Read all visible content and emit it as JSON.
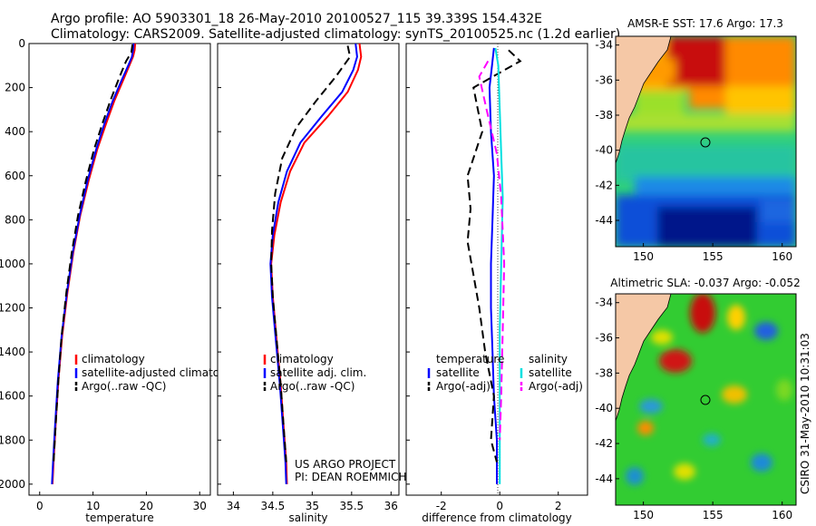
{
  "header": {
    "line1": "Argo profile: AO 5903301_18 26-May-2010 20100527_115 39.339S 154.432E",
    "line2": "Climatology: CARS2009. Satellite-adjusted climatology: synTS_20100525.nc (1.2d earlier)"
  },
  "chart_data": [
    {
      "type": "line",
      "xlabel": "temperature",
      "ylabel": "",
      "xlim": [
        -2,
        32
      ],
      "ylim": [
        2050,
        0
      ],
      "xticks": [
        "0",
        "10",
        "20",
        "30"
      ],
      "yticks": [
        "0",
        "200",
        "400",
        "600",
        "800",
        "1000",
        "1200",
        "1400",
        "1600",
        "1800",
        "2000"
      ],
      "series": [
        {
          "name": "climatology",
          "color": "#ff0000",
          "dash": "",
          "x": [
            17.9,
            17.8,
            17.5,
            16.8,
            15.6,
            14.0,
            12.5,
            10.8,
            9.2,
            7.6,
            6.3,
            5.2,
            4.2,
            3.5,
            3.0,
            2.6,
            2.4
          ],
          "y": [
            0,
            30,
            60,
            100,
            170,
            260,
            360,
            480,
            620,
            780,
            950,
            1130,
            1330,
            1530,
            1730,
            1900,
            2000
          ]
        },
        {
          "name": "satellite-adjusted climatology",
          "color": "#0000ff",
          "dash": "",
          "x": [
            17.6,
            17.5,
            17.3,
            16.6,
            15.3,
            13.7,
            12.2,
            10.6,
            9.0,
            7.5,
            6.2,
            5.1,
            4.1,
            3.4,
            2.9,
            2.5,
            2.3
          ],
          "y": [
            0,
            30,
            60,
            100,
            170,
            260,
            360,
            480,
            620,
            780,
            950,
            1130,
            1330,
            1530,
            1730,
            1900,
            2000
          ]
        },
        {
          "name": "Argo(..raw -QC)",
          "color": "#000000",
          "dash": "9,5",
          "x": [
            17.4,
            17.2,
            16.2,
            15.0,
            13.4,
            11.8,
            10.2,
            8.7,
            7.2,
            6.0,
            5.0,
            4.1,
            3.5,
            3.0,
            2.6
          ],
          "y": [
            5,
            40,
            80,
            150,
            250,
            360,
            480,
            620,
            780,
            950,
            1130,
            1330,
            1530,
            1730,
            1900
          ]
        }
      ],
      "legend": [
        "climatology",
        "satellite-adjusted climatology",
        "Argo(..raw -QC)"
      ],
      "legend_position": "bottom-right"
    },
    {
      "type": "line",
      "xlabel": "salinity",
      "ylabel": "",
      "xlim": [
        33.8,
        36.1
      ],
      "ylim": [
        2050,
        0
      ],
      "xticks": [
        "34",
        "34.5",
        "35",
        "35.5",
        "36"
      ],
      "series": [
        {
          "name": "climatology",
          "color": "#ff0000",
          "dash": "",
          "x": [
            35.6,
            35.62,
            35.58,
            35.45,
            35.2,
            34.9,
            34.72,
            34.6,
            34.52,
            34.48,
            34.5,
            34.55,
            34.6,
            34.64,
            34.67,
            34.68
          ],
          "y": [
            0,
            60,
            120,
            220,
            330,
            450,
            580,
            720,
            870,
            1000,
            1150,
            1350,
            1550,
            1750,
            1900,
            2000
          ]
        },
        {
          "name": "satellite adj. clim.",
          "color": "#0000ff",
          "dash": "",
          "x": [
            35.55,
            35.57,
            35.52,
            35.38,
            35.12,
            34.85,
            34.68,
            34.57,
            34.5,
            34.47,
            34.49,
            34.54,
            34.59,
            34.63,
            34.66,
            34.67
          ],
          "y": [
            0,
            60,
            120,
            220,
            330,
            450,
            580,
            720,
            870,
            1000,
            1150,
            1350,
            1550,
            1750,
            1900,
            2000
          ]
        },
        {
          "name": "Argo(..raw -QC)",
          "color": "#000000",
          "dash": "9,5",
          "x": [
            35.45,
            35.48,
            35.3,
            35.05,
            34.8,
            34.62,
            34.53,
            34.49,
            34.48,
            34.5,
            34.55,
            34.6,
            34.64,
            34.67
          ],
          "y": [
            10,
            60,
            150,
            260,
            380,
            520,
            680,
            850,
            1000,
            1150,
            1350,
            1550,
            1750,
            1900
          ]
        }
      ],
      "legend": [
        "climatology",
        "satellite adj. clim.",
        "Argo(..raw -QC)"
      ],
      "legend_position": "bottom-right",
      "annotation": [
        "US ARGO PROJECT",
        "PI: DEAN ROEMMICH"
      ]
    },
    {
      "type": "line",
      "xlabel": "difference from climatology",
      "ylabel": "",
      "xlim": [
        -3.2,
        3.0
      ],
      "ylim": [
        2050,
        0
      ],
      "xticks": [
        "-2",
        "0",
        "2"
      ],
      "series": [
        {
          "name": "temperature satellite",
          "color": "#0000ff",
          "dash": "",
          "x": [
            -0.2,
            -0.25,
            -0.35,
            -0.3,
            -0.2,
            -0.25,
            -0.3,
            -0.3,
            -0.25,
            -0.2,
            -0.15,
            -0.1,
            -0.1,
            -0.1
          ],
          "y": [
            20,
            80,
            200,
            400,
            600,
            800,
            1000,
            1200,
            1400,
            1600,
            1700,
            1800,
            1900,
            2000
          ]
        },
        {
          "name": "temperature Argo(-adj)",
          "color": "#000000",
          "dash": "9,5",
          "x": [
            0.3,
            0.7,
            -0.9,
            -0.6,
            -1.1,
            -1.0,
            -1.1,
            -0.9,
            -0.7,
            -0.5,
            -0.2,
            -0.3,
            -0.1
          ],
          "y": [
            30,
            80,
            200,
            400,
            600,
            750,
            900,
            1050,
            1200,
            1400,
            1600,
            1800,
            1900
          ]
        },
        {
          "name": "salinity satellite",
          "color": "#00e0e0",
          "dash": "",
          "x": [
            -0.15,
            -0.05,
            0.0,
            0.05,
            0.1,
            0.05,
            0.0,
            0.0,
            0.0,
            0.0
          ],
          "y": [
            20,
            100,
            300,
            500,
            700,
            1000,
            1300,
            1600,
            1800,
            2000
          ]
        },
        {
          "name": "salinity Argo(-adj)",
          "color": "#ff00ff",
          "dash": "9,5",
          "x": [
            -0.4,
            -0.7,
            -0.45,
            -0.1,
            0.05,
            0.15,
            0.1,
            0.05,
            0.0
          ],
          "y": [
            80,
            150,
            300,
            500,
            700,
            1000,
            1300,
            1600,
            1800
          ]
        }
      ],
      "legend_headers": [
        "temperature",
        "salinity"
      ],
      "legend": [
        "satellite",
        "Argo(-adj)",
        "satellite",
        "Argo(-adj)"
      ],
      "legend_position": "bottom-right"
    },
    {
      "type": "heatmap",
      "title": "AMSR-E SST: 17.6 Argo: 17.3",
      "xlim": [
        148,
        161
      ],
      "ylim": [
        -45.5,
        -33.5
      ],
      "xticks": [
        "150",
        "155",
        "160"
      ],
      "yticks": [
        "-34",
        "-36",
        "-38",
        "-40",
        "-42",
        "-44"
      ],
      "marker": {
        "lon": 154.4,
        "lat": -39.3
      }
    },
    {
      "type": "heatmap",
      "title": "Altimetric SLA: -0.037 Argo: -0.052",
      "xlim": [
        148,
        161
      ],
      "ylim": [
        -45.5,
        -33.5
      ],
      "xticks": [
        "150",
        "155",
        "160"
      ],
      "yticks": [
        "-34",
        "-36",
        "-38",
        "-40",
        "-42",
        "-44"
      ],
      "marker": {
        "lon": 154.4,
        "lat": -39.3
      }
    }
  ],
  "footer": {
    "stamp": "CSIRO 31-May-2010 10:31:03"
  }
}
